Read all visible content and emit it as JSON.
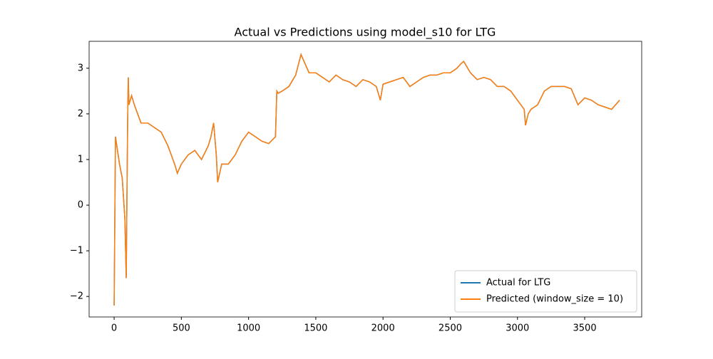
{
  "chart_data": {
    "type": "line",
    "title": "Actual vs Predictions using model_s10 for LTG",
    "x": [
      0,
      10,
      20,
      40,
      60,
      80,
      90,
      95,
      100,
      105,
      110,
      130,
      150,
      200,
      250,
      300,
      350,
      400,
      450,
      470,
      500,
      550,
      600,
      650,
      700,
      720,
      740,
      760,
      770,
      800,
      850,
      900,
      950,
      1000,
      1050,
      1100,
      1150,
      1200,
      1210,
      1220,
      1250,
      1300,
      1350,
      1390,
      1420,
      1450,
      1500,
      1550,
      1600,
      1650,
      1700,
      1750,
      1800,
      1850,
      1900,
      1950,
      1980,
      2000,
      2050,
      2100,
      2150,
      2200,
      2250,
      2300,
      2350,
      2400,
      2450,
      2500,
      2550,
      2580,
      2600,
      2650,
      2700,
      2750,
      2800,
      2850,
      2900,
      2950,
      3000,
      3050,
      3060,
      3080,
      3100,
      3150,
      3200,
      3250,
      3300,
      3350,
      3400,
      3450,
      3500,
      3550,
      3600,
      3650,
      3700,
      3760
    ],
    "series": [
      {
        "name": "Actual for LTG",
        "color": "#1f77b4",
        "values": [
          -2.2,
          1.5,
          1.3,
          0.9,
          0.6,
          -0.3,
          -1.6,
          0.1,
          1.7,
          2.8,
          2.2,
          2.4,
          2.2,
          1.8,
          1.8,
          1.7,
          1.6,
          1.3,
          0.9,
          0.7,
          0.9,
          1.1,
          1.2,
          1.0,
          1.3,
          1.5,
          1.8,
          1.1,
          0.5,
          0.9,
          0.9,
          1.1,
          1.4,
          1.6,
          1.5,
          1.4,
          1.35,
          1.5,
          2.5,
          2.45,
          2.5,
          2.6,
          2.85,
          3.3,
          3.1,
          2.9,
          2.9,
          2.8,
          2.7,
          2.85,
          2.75,
          2.7,
          2.6,
          2.75,
          2.7,
          2.6,
          2.3,
          2.65,
          2.7,
          2.75,
          2.8,
          2.6,
          2.7,
          2.8,
          2.85,
          2.85,
          2.9,
          2.9,
          3.0,
          3.1,
          3.15,
          2.9,
          2.75,
          2.8,
          2.75,
          2.6,
          2.6,
          2.5,
          2.3,
          2.1,
          1.75,
          2.0,
          2.1,
          2.2,
          2.5,
          2.6,
          2.6,
          2.6,
          2.55,
          2.2,
          2.35,
          2.3,
          2.2,
          2.15,
          2.1,
          2.3
        ]
      },
      {
        "name": "Predicted (window_size = 10)",
        "color": "#ff7f0e",
        "values": [
          -2.2,
          1.5,
          1.3,
          0.9,
          0.6,
          -0.3,
          -1.6,
          0.1,
          1.7,
          2.8,
          2.2,
          2.4,
          2.2,
          1.8,
          1.8,
          1.7,
          1.6,
          1.3,
          0.9,
          0.7,
          0.9,
          1.1,
          1.2,
          1.0,
          1.3,
          1.5,
          1.8,
          1.1,
          0.5,
          0.9,
          0.9,
          1.1,
          1.4,
          1.6,
          1.5,
          1.4,
          1.35,
          1.5,
          2.5,
          2.45,
          2.5,
          2.6,
          2.85,
          3.3,
          3.1,
          2.9,
          2.9,
          2.8,
          2.7,
          2.85,
          2.75,
          2.7,
          2.6,
          2.75,
          2.7,
          2.6,
          2.3,
          2.65,
          2.7,
          2.75,
          2.8,
          2.6,
          2.7,
          2.8,
          2.85,
          2.85,
          2.9,
          2.9,
          3.0,
          3.1,
          3.15,
          2.9,
          2.75,
          2.8,
          2.75,
          2.6,
          2.6,
          2.5,
          2.3,
          2.1,
          1.75,
          2.0,
          2.1,
          2.2,
          2.5,
          2.6,
          2.6,
          2.6,
          2.55,
          2.2,
          2.35,
          2.3,
          2.2,
          2.15,
          2.1,
          2.3
        ]
      }
    ],
    "xlim": [
      -186,
      3924
    ],
    "ylim": [
      -2.45,
      3.59
    ],
    "xticks": [
      0,
      500,
      1000,
      1500,
      2000,
      2500,
      3000,
      3500
    ],
    "yticks": [
      {
        "value": -2,
        "label": "−2"
      },
      {
        "value": -1,
        "label": "−1"
      },
      0,
      1,
      2,
      3
    ],
    "legend": "lower right"
  }
}
